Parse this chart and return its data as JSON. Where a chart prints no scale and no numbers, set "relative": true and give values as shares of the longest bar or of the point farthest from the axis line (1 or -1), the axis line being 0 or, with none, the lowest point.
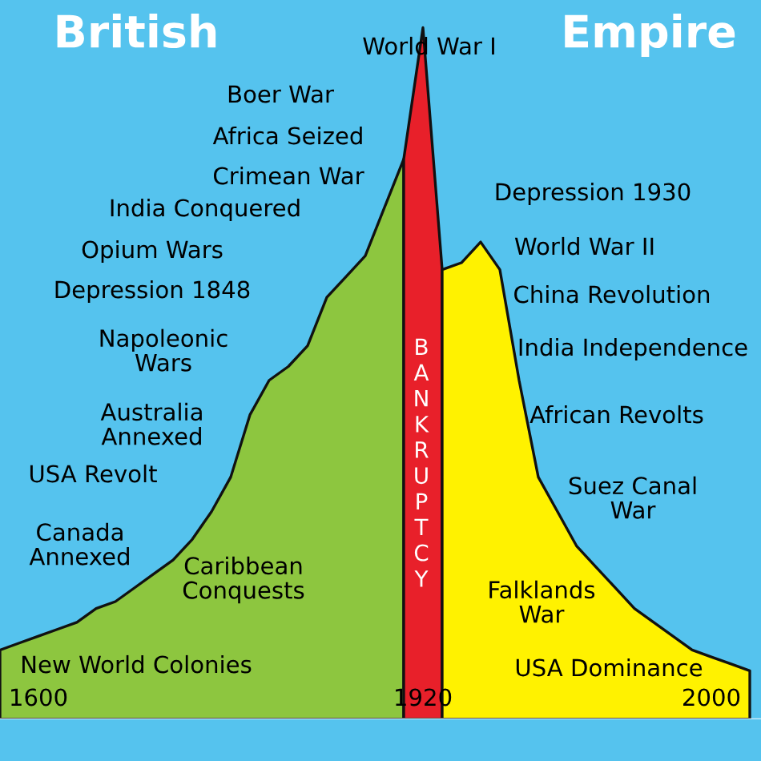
{
  "chart_data": {
    "type": "area",
    "title": "British Empire",
    "relative": true,
    "categories": [
      null,
      null,
      "1600",
      null,
      null,
      null,
      null,
      null,
      null,
      null,
      null,
      null,
      null,
      null,
      null,
      null,
      null,
      null,
      null,
      null,
      null,
      null,
      "1920",
      null,
      null,
      null,
      null,
      null,
      null,
      null,
      null,
      null,
      null,
      null,
      null,
      null,
      null,
      "2000",
      null,
      null
    ],
    "series": [
      {
        "color": "#8dc63f",
        "values": [
          0.1,
          0.11,
          0.12,
          0.13,
          0.14,
          0.16,
          0.17,
          0.19,
          0.21,
          0.23,
          0.26,
          0.3,
          0.35,
          0.44,
          0.49,
          0.51,
          0.54,
          0.61,
          0.64,
          0.67,
          0.74,
          0.81,
          null,
          null,
          null,
          null,
          null,
          null,
          null,
          null,
          null,
          null,
          null,
          null,
          null,
          null,
          null,
          null,
          null,
          null
        ]
      },
      {
        "color": "#e8202a",
        "values": [
          null,
          null,
          null,
          null,
          null,
          null,
          null,
          null,
          null,
          null,
          null,
          null,
          null,
          null,
          null,
          null,
          null,
          null,
          null,
          null,
          null,
          0.81,
          1,
          0.65,
          null,
          null,
          null,
          null,
          null,
          null,
          null,
          null,
          null,
          null,
          null,
          null,
          null,
          null,
          null,
          null
        ]
      },
      {
        "color": "#fff200",
        "values": [
          null,
          null,
          null,
          null,
          null,
          null,
          null,
          null,
          null,
          null,
          null,
          null,
          null,
          null,
          null,
          null,
          null,
          null,
          null,
          null,
          null,
          null,
          null,
          0.65,
          0.66,
          0.69,
          0.65,
          0.49,
          0.35,
          0.3,
          0.25,
          0.22,
          0.19,
          0.16,
          0.14,
          0.12,
          0.1,
          0.09,
          0.08,
          0.07
        ]
      }
    ],
    "annotations": [
      "World War I",
      "Boer War",
      "Africa Seized",
      "Crimean War",
      "India Conquered",
      "Opium Wars",
      "Depression 1848",
      "Napoleonic\nWars",
      "Australia\nAnnexed",
      "USA Revolt",
      "Canada\nAnnexed",
      "Caribbean\nConquests",
      "New World Colonies",
      "Depression 1930",
      "World War II",
      "China Revolution",
      "India Independence",
      "African Revolts",
      "Suez Canal\nWar",
      "Falklands\nWar",
      "USA Dominance",
      "BANKRUPTCY"
    ],
    "legend": false,
    "grid": false
  }
}
